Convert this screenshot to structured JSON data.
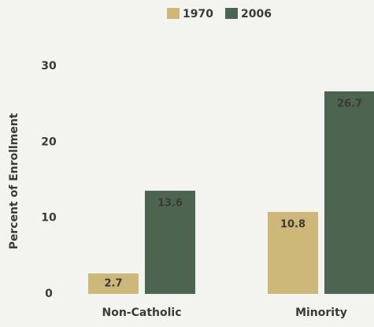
{
  "chart_data": {
    "type": "bar",
    "categories": [
      "Non-Catholic",
      "Minority"
    ],
    "series": [
      {
        "name": "1970",
        "color": "#cdb779",
        "values": [
          2.7,
          10.8
        ]
      },
      {
        "name": "2006",
        "color": "#4d6550",
        "values": [
          13.6,
          26.7
        ]
      }
    ],
    "y_label": "Percent of Enrollment",
    "ylim": [
      0,
      35
    ],
    "yticks": [
      0,
      10,
      20,
      30
    ],
    "grid": false,
    "legend": "top"
  }
}
